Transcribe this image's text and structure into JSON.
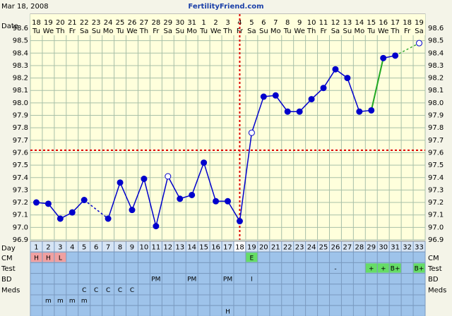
{
  "chart_data": {
    "type": "line",
    "title": "Mar 18, 2008",
    "site": "FertilityFriend.com",
    "date_label": "Date",
    "day_label": "Day",
    "categories": [
      "18",
      "19",
      "20",
      "21",
      "22",
      "23",
      "24",
      "25",
      "26",
      "27",
      "28",
      "29",
      "30",
      "31",
      "1",
      "2",
      "3",
      "4",
      "5",
      "6",
      "7",
      "8",
      "9",
      "10",
      "11",
      "12",
      "13",
      "14",
      "15",
      "16",
      "17",
      "18",
      "19"
    ],
    "weekdays": [
      "Tu",
      "We",
      "Th",
      "Fr",
      "Sa",
      "Su",
      "Mo",
      "Tu",
      "We",
      "Th",
      "Fr",
      "Sa",
      "Su",
      "Mo",
      "Tu",
      "We",
      "Th",
      "Fr",
      "Sa",
      "Su",
      "Mo",
      "Tu",
      "We",
      "Th",
      "Fr",
      "Sa",
      "Su",
      "Mo",
      "Tu",
      "We",
      "Th",
      "Fr",
      "Sa"
    ],
    "days": [
      1,
      2,
      3,
      4,
      5,
      6,
      7,
      8,
      9,
      10,
      11,
      12,
      13,
      14,
      15,
      16,
      17,
      18,
      19,
      20,
      21,
      22,
      23,
      24,
      25,
      26,
      27,
      28,
      29,
      30,
      31,
      32,
      33
    ],
    "series": [
      {
        "color": "#0000cc",
        "values": [
          97.2,
          97.19,
          97.07,
          97.12,
          97.22,
          null,
          97.07,
          97.36,
          97.14,
          97.39,
          97.01,
          97.41,
          97.23,
          97.26,
          97.52,
          97.21,
          97.21,
          97.05,
          97.76,
          98.05,
          98.06,
          97.93,
          97.93,
          98.03,
          98.12,
          98.27,
          98.2,
          97.93,
          97.94,
          98.36,
          98.38,
          null,
          98.48
        ]
      }
    ],
    "open_points": [
      12,
      19,
      33
    ],
    "gaps": [
      {
        "from": 5,
        "to": 7,
        "color": "#0000cc"
      },
      {
        "from": 31,
        "to": 33,
        "color": "#33aa33"
      }
    ],
    "segments": [
      {
        "from": 29,
        "to": 30,
        "color": "#22aa22"
      }
    ],
    "coverline": 97.62,
    "ovulation_day": 18,
    "coverline_color": "#dd0000",
    "ylim": [
      96.9,
      98.6
    ],
    "yticks": [
      98.6,
      98.5,
      98.4,
      98.3,
      98.2,
      98.1,
      {
        "value": 98,
        "label": "98.0"
      },
      97.9,
      97.8,
      97.7,
      97.6,
      97.5,
      97.4,
      97.3,
      97.2,
      97.1,
      {
        "value": 97,
        "label": "97.0"
      },
      96.9
    ],
    "grid": true,
    "rows": [
      {
        "label": "CM",
        "entries": [
          {
            "day": 1,
            "text": "H",
            "color": "#f0a0a0"
          },
          {
            "day": 2,
            "text": "H",
            "color": "#f0a0a0"
          },
          {
            "day": 3,
            "text": "L",
            "color": "#f0a0a0"
          },
          {
            "day": 19,
            "text": "E",
            "color": "#66dd66"
          }
        ]
      },
      {
        "label": "Test",
        "entries": [
          {
            "day": 26,
            "text": "-"
          },
          {
            "day": 29,
            "text": "+",
            "color": "#66dd66"
          },
          {
            "day": 30,
            "text": "+",
            "color": "#66dd66"
          },
          {
            "day": 31,
            "text": "B+",
            "color": "#66dd66"
          },
          {
            "day": 33,
            "text": "B+",
            "color": "#66dd66"
          }
        ]
      },
      {
        "label": "BD",
        "entries": [
          {
            "day": 11,
            "text": "PM"
          },
          {
            "day": 14,
            "text": "PM"
          },
          {
            "day": 17,
            "text": "PM"
          },
          {
            "day": 19,
            "text": "I"
          }
        ]
      },
      {
        "label": "Meds",
        "entries": [
          {
            "day": 5,
            "text": "C"
          },
          {
            "day": 6,
            "text": "C"
          },
          {
            "day": 7,
            "text": "C"
          },
          {
            "day": 8,
            "text": "C"
          },
          {
            "day": 9,
            "text": "C"
          }
        ]
      },
      {
        "entries": [
          {
            "day": 2,
            "text": "m"
          },
          {
            "day": 3,
            "text": "m"
          },
          {
            "day": 4,
            "text": "m"
          },
          {
            "day": 5,
            "text": "m"
          }
        ]
      },
      {
        "entries": [
          {
            "day": 17,
            "text": "H"
          }
        ]
      }
    ]
  }
}
